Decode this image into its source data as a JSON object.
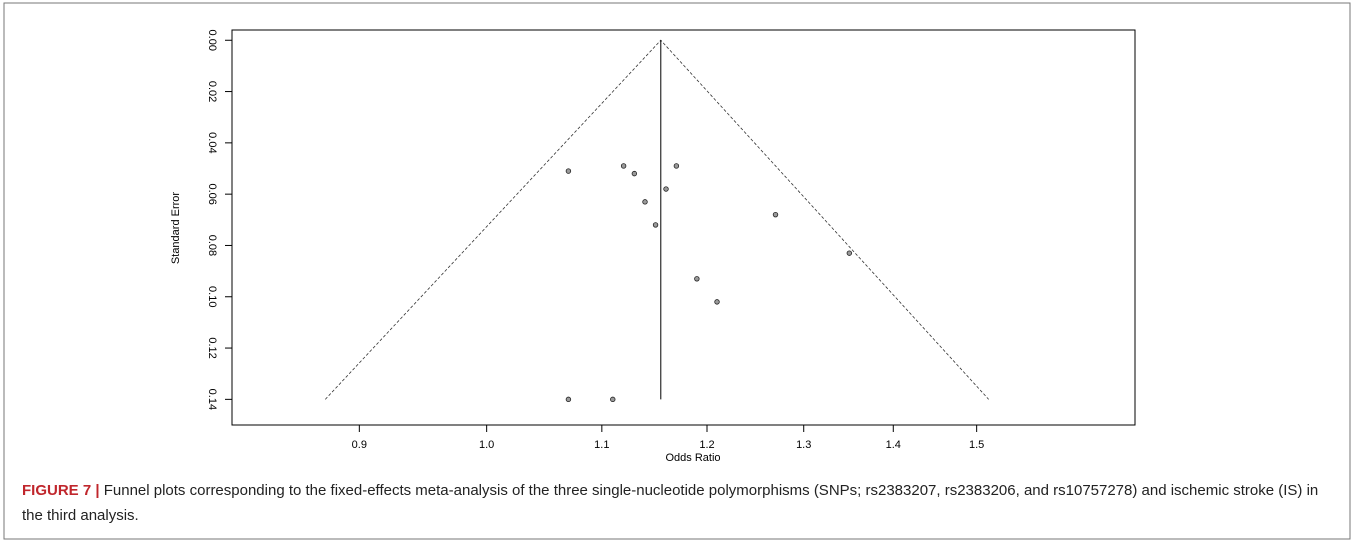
{
  "chart_data": {
    "type": "scatter",
    "x_label": "Odds Ratio",
    "y_label": "Standard Error",
    "x": [
      1.07,
      1.12,
      1.13,
      1.14,
      1.15,
      1.16,
      1.17,
      1.19,
      1.21,
      1.27,
      1.35,
      1.07,
      1.11
    ],
    "values": [
      0.051,
      0.049,
      0.052,
      0.063,
      0.072,
      0.058,
      0.049,
      0.093,
      0.102,
      0.068,
      0.083,
      0.14,
      0.14
    ],
    "color": "#9a9a9a",
    "funnel": {
      "x": [
        0.875,
        1.155,
        1.515
      ],
      "y": [
        0.14,
        0,
        0.14
      ]
    },
    "center": 1.155,
    "x_log": true,
    "xlim": [
      0.81,
      1.71
    ],
    "xticks": [
      0.9,
      {
        "value": 1,
        "label": "1.0"
      },
      1.1,
      1.2,
      1.3,
      1.4,
      1.5
    ],
    "ylim": [
      -0.004,
      0.15
    ],
    "y_inverted": true,
    "yticks": [
      {
        "value": 0,
        "label": "0.00"
      },
      {
        "value": 0.02,
        "label": "0.02"
      },
      {
        "value": 0.04,
        "label": "0.04"
      },
      {
        "value": 0.06,
        "label": "0.06"
      },
      {
        "value": 0.08,
        "label": "0.08"
      },
      {
        "value": 0.1,
        "label": "0.10"
      },
      {
        "value": 0.12,
        "label": "0.12"
      },
      {
        "value": 0.14,
        "label": "0.14"
      }
    ]
  },
  "caption": {
    "label": "FIGURE 7 |",
    "text": "Funnel plots corresponding to the fixed-effects meta-analysis of the three single-nucleotide polymorphisms (SNPs; rs2383207, rs2383206, and rs10757278) and ischemic stroke (IS) in the third analysis."
  }
}
